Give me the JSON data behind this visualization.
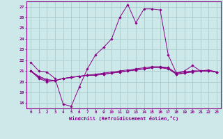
{
  "title": "",
  "xlabel": "Windchill (Refroidissement éolien,°C)",
  "background_color": "#cce8e8",
  "grid_color": "#aacccc",
  "line_color": "#880088",
  "xlim": [
    -0.5,
    23.5
  ],
  "ylim": [
    17.5,
    27.5
  ],
  "yticks": [
    18,
    19,
    20,
    21,
    22,
    23,
    24,
    25,
    26,
    27
  ],
  "xticks": [
    0,
    1,
    2,
    3,
    4,
    5,
    6,
    7,
    8,
    9,
    10,
    11,
    12,
    13,
    14,
    15,
    16,
    17,
    18,
    19,
    20,
    21,
    22,
    23
  ],
  "series": [
    [
      21.8,
      21.0,
      20.9,
      20.3,
      17.9,
      17.7,
      19.5,
      21.2,
      22.5,
      23.2,
      24.0,
      26.0,
      27.2,
      25.5,
      26.8,
      26.8,
      26.7,
      22.5,
      20.8,
      21.0,
      21.5,
      21.0,
      21.0,
      20.9
    ],
    [
      21.0,
      20.5,
      20.2,
      20.1,
      20.3,
      20.4,
      20.5,
      20.6,
      20.6,
      20.7,
      20.8,
      20.9,
      21.0,
      21.1,
      21.2,
      21.3,
      21.3,
      21.3,
      20.7,
      20.8,
      20.9,
      21.0,
      21.1,
      20.9
    ],
    [
      21.0,
      20.4,
      20.1,
      20.1,
      20.3,
      20.4,
      20.5,
      20.6,
      20.7,
      20.8,
      20.9,
      21.0,
      21.1,
      21.2,
      21.3,
      21.4,
      21.4,
      21.3,
      20.8,
      20.9,
      21.0,
      21.0,
      21.0,
      20.9
    ],
    [
      21.0,
      20.3,
      20.0,
      20.1,
      20.3,
      20.4,
      20.5,
      20.6,
      20.6,
      20.7,
      20.8,
      20.9,
      21.0,
      21.1,
      21.2,
      21.3,
      21.3,
      21.2,
      20.7,
      20.8,
      21.0,
      21.0,
      21.0,
      20.9
    ]
  ],
  "figsize": [
    3.2,
    2.0
  ],
  "dpi": 100
}
